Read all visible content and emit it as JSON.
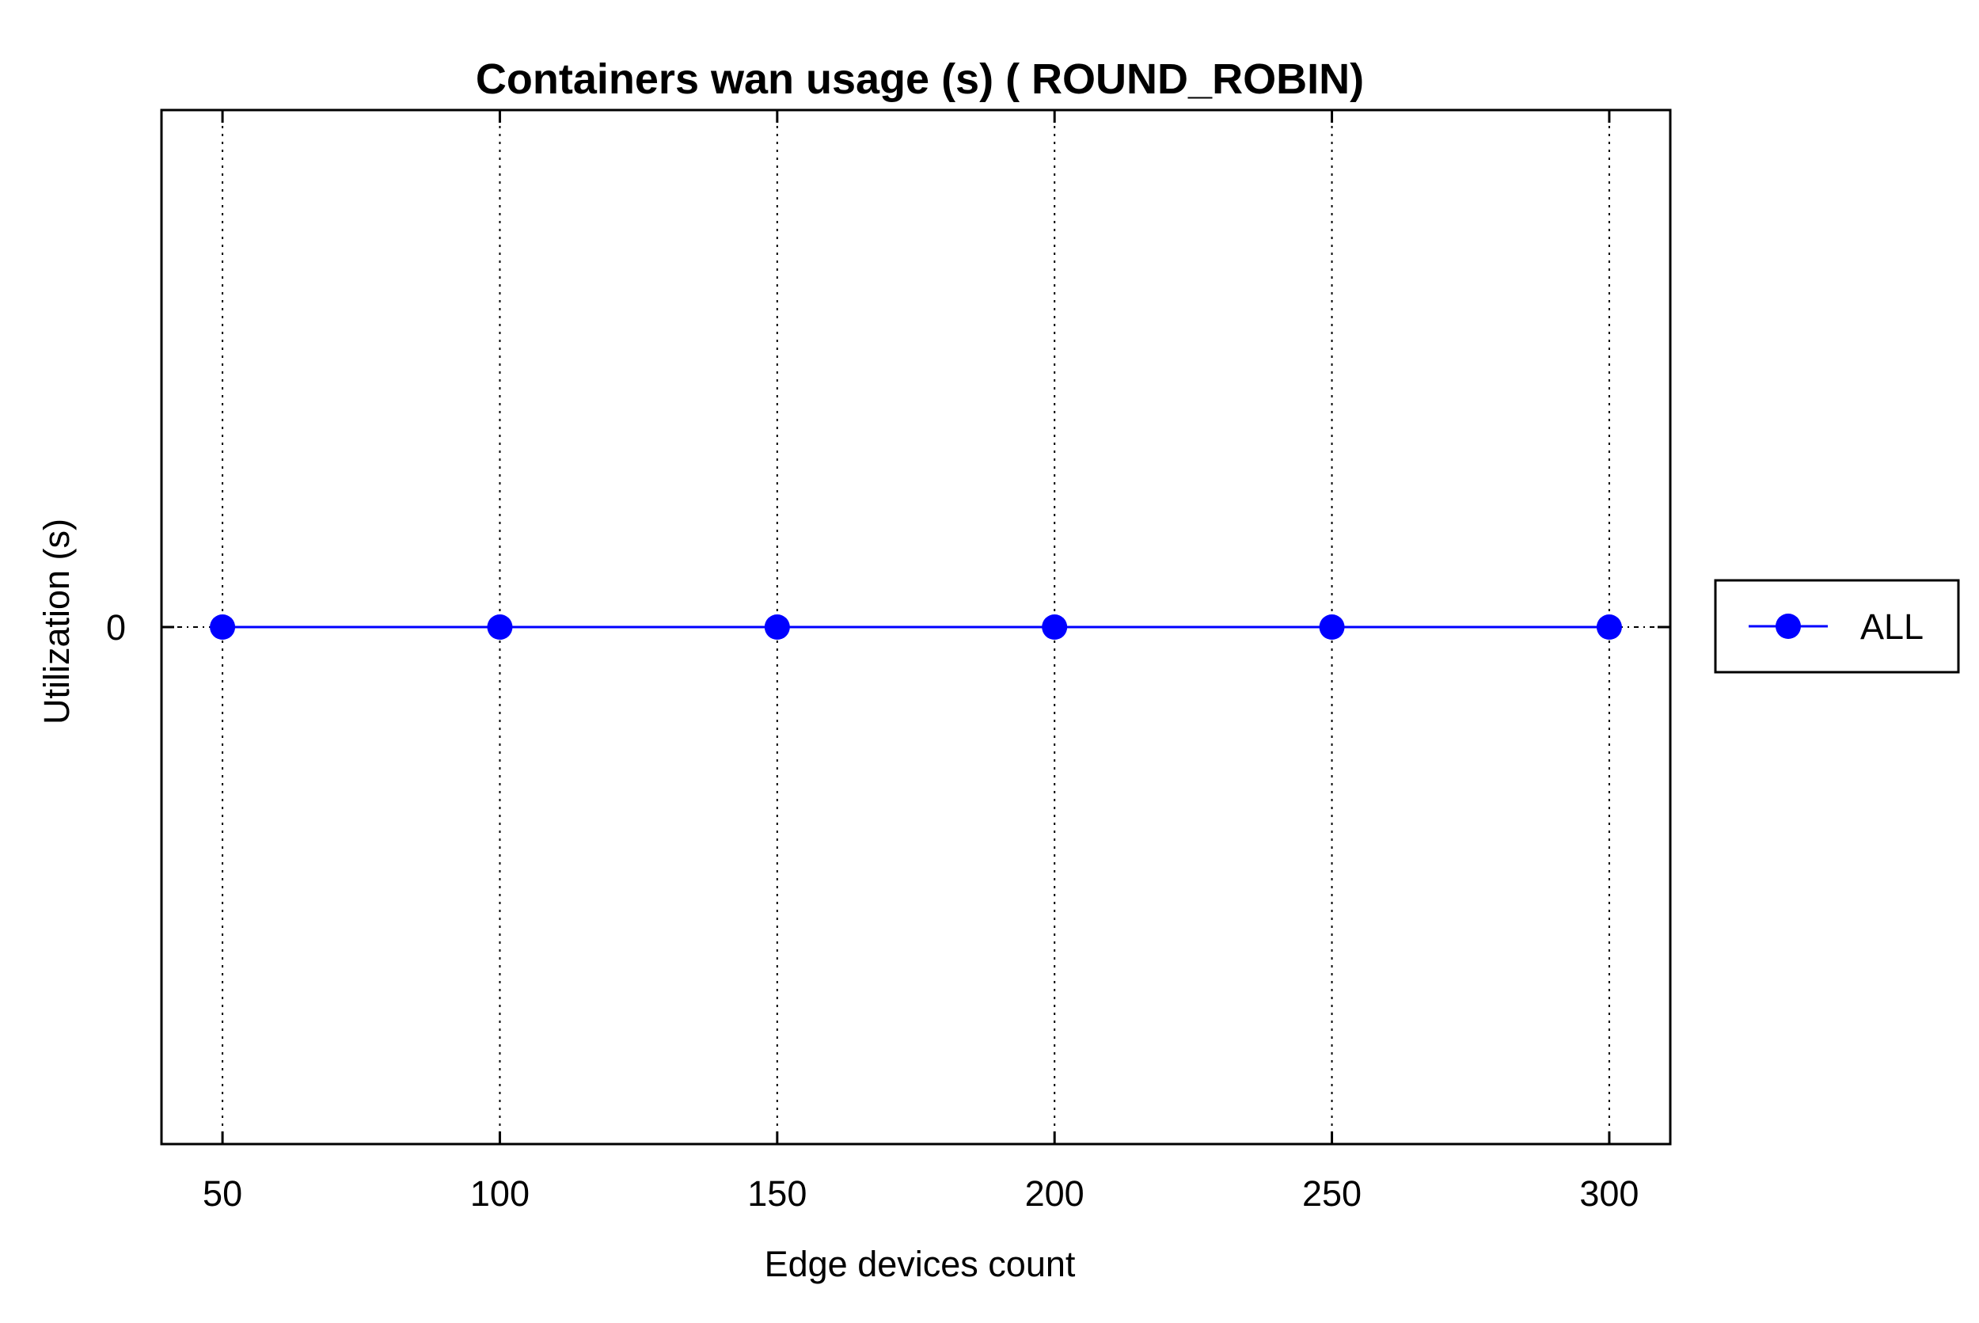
{
  "chart_data": {
    "type": "line",
    "title": "Containers wan usage (s) ( ROUND_ROBIN)",
    "xlabel": "Edge devices count",
    "ylabel": "Utilization (s)",
    "x": [
      50,
      100,
      150,
      200,
      250,
      300
    ],
    "x_tick_labels": [
      "50",
      "100",
      "150",
      "200",
      "250",
      "300"
    ],
    "y_tick_values": [
      0
    ],
    "y_tick_labels": [
      "0"
    ],
    "xlim": [
      39,
      311
    ],
    "ylim": [
      -1,
      1
    ],
    "grid": "vertical dotted lines at x ticks",
    "legend": "outside-right",
    "series": [
      {
        "name": "ALL",
        "values": [
          0,
          0,
          0,
          0,
          0,
          0
        ],
        "color": "#0000ff",
        "marker": "circle"
      }
    ]
  }
}
